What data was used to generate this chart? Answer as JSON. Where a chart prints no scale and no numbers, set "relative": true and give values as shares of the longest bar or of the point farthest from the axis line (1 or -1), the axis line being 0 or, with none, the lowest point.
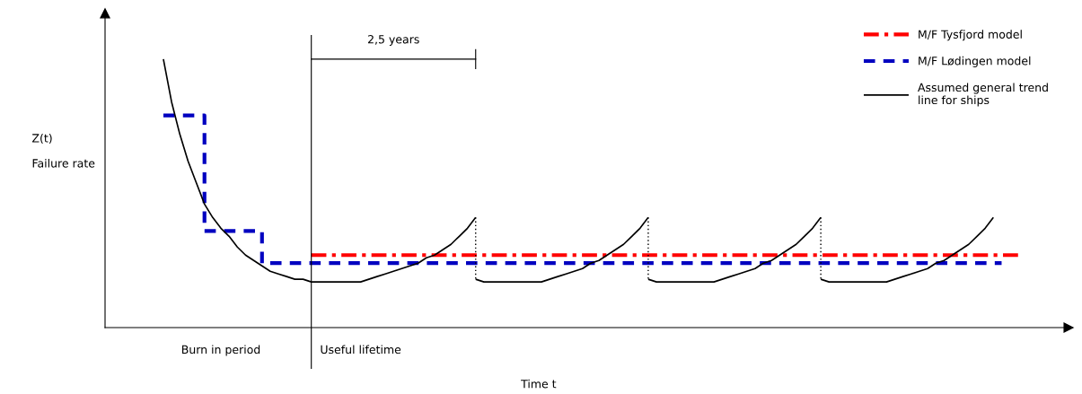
{
  "chart_data": {
    "type": "line",
    "relative": true,
    "xlabel": "Time t",
    "categories": [
      null,
      null,
      null,
      null,
      null,
      null,
      null,
      "Burn in period",
      null,
      null,
      null,
      null,
      null,
      null,
      null,
      null,
      null,
      null,
      null,
      null,
      null,
      null,
      null,
      null,
      "Useful lifetime",
      null,
      null,
      null,
      null,
      null,
      null,
      null,
      null,
      null,
      null,
      null,
      null,
      null,
      null,
      null,
      null,
      null,
      null,
      null,
      null,
      null,
      null,
      null,
      null,
      null,
      null,
      null,
      null,
      null,
      null,
      null,
      null,
      null,
      null,
      null,
      null,
      null,
      null,
      null,
      null,
      null,
      null,
      null,
      null,
      null,
      null,
      null,
      null,
      null,
      null,
      null,
      null,
      null,
      null,
      null,
      null,
      null,
      null,
      null,
      null,
      null,
      null,
      null,
      null,
      null,
      null,
      null,
      null,
      null,
      null,
      null,
      null,
      null,
      null,
      null,
      null,
      null,
      null,
      null,
      null
    ],
    "annotations": [
      "Z(t)",
      "Failure rate",
      "2,5 years"
    ],
    "legend": "top right",
    "marker": "none",
    "series": [
      {
        "name": "M/F Tysfjord model",
        "color": "#ff0000",
        "line_style": "dashdot",
        "values": [
          null,
          null,
          null,
          null,
          null,
          null,
          null,
          null,
          null,
          null,
          null,
          null,
          null,
          null,
          null,
          null,
          null,
          null,
          0.27,
          0.27,
          0.27,
          0.27,
          0.27,
          0.27,
          0.27,
          0.27,
          0.27,
          0.27,
          0.27,
          0.27,
          0.27,
          0.27,
          0.27,
          0.27,
          0.27,
          0.27,
          0.27,
          0.27,
          0.27,
          0.27,
          0.27,
          0.27,
          0.27,
          0.27,
          0.27,
          0.27,
          0.27,
          0.27,
          0.27,
          0.27,
          0.27,
          0.27,
          0.27,
          0.27,
          0.27,
          0.27,
          0.27,
          0.27,
          0.27,
          0.27,
          0.27,
          0.27,
          0.27,
          0.27,
          0.27,
          0.27,
          0.27,
          0.27,
          0.27,
          0.27,
          0.27,
          0.27,
          0.27,
          0.27,
          0.27,
          0.27,
          0.27,
          0.27,
          0.27,
          0.27,
          0.27,
          0.27,
          0.27,
          0.27,
          0.27,
          0.27,
          0.27,
          0.27,
          0.27,
          0.27,
          0.27,
          0.27,
          0.27,
          0.27,
          0.27,
          0.27,
          0.27,
          0.27,
          0.27,
          0.27,
          0.27,
          0.27,
          0.27,
          0.27,
          0.27
        ]
      },
      {
        "name": "M/F Lødingen model",
        "type": "step",
        "color": "#0000c0",
        "line_style": "dashed",
        "values": [
          0.79,
          0.79,
          0.79,
          0.79,
          0.79,
          0.36,
          0.36,
          0.36,
          0.36,
          0.36,
          0.36,
          0.36,
          0.24,
          0.24,
          0.24,
          0.24,
          0.24,
          0.24,
          0.24,
          0.24,
          0.24,
          0.24,
          0.24,
          0.24,
          0.24,
          0.24,
          0.24,
          0.24,
          0.24,
          0.24,
          0.24,
          0.24,
          0.24,
          0.24,
          0.24,
          0.24,
          0.24,
          0.24,
          0.24,
          0.24,
          0.24,
          0.24,
          0.24,
          0.24,
          0.24,
          0.24,
          0.24,
          0.24,
          0.24,
          0.24,
          0.24,
          0.24,
          0.24,
          0.24,
          0.24,
          0.24,
          0.24,
          0.24,
          0.24,
          0.24,
          0.24,
          0.24,
          0.24,
          0.24,
          0.24,
          0.24,
          0.24,
          0.24,
          0.24,
          0.24,
          0.24,
          0.24,
          0.24,
          0.24,
          0.24,
          0.24,
          0.24,
          0.24,
          0.24,
          0.24,
          0.24,
          0.24,
          0.24,
          0.24,
          0.24,
          0.24,
          0.24,
          0.24,
          0.24,
          0.24,
          0.24,
          0.24,
          0.24,
          0.24,
          0.24,
          0.24,
          0.24,
          0.24,
          0.24,
          0.24,
          0.24,
          0.24,
          0.24,
          null,
          null
        ]
      },
      {
        "name": "Assumed general trend\nline for ships",
        "color": "#000000",
        "line_style": "solid",
        "values": [
          1.0,
          0.84,
          0.72,
          0.62,
          0.54,
          0.46,
          0.41,
          0.37,
          0.34,
          0.3,
          0.27,
          0.25,
          0.23,
          0.21,
          0.2,
          0.19,
          0.18,
          0.18,
          0.17,
          0.17,
          0.17,
          0.17,
          0.17,
          0.17,
          0.17,
          0.18,
          0.19,
          0.2,
          0.21,
          0.22,
          0.23,
          0.24,
          0.26,
          0.27,
          0.29,
          0.31,
          0.34,
          0.37,
          0.41,
          null,
          null,
          null,
          null,
          null,
          null,
          null,
          null,
          null,
          null,
          null,
          null,
          null,
          null,
          null,
          null,
          null,
          null,
          null,
          null,
          null,
          null,
          null,
          null,
          null,
          null,
          null,
          null,
          null,
          null,
          null,
          null,
          null,
          null,
          null,
          null,
          null,
          null,
          null,
          null,
          null,
          null,
          null,
          null,
          null,
          null,
          null,
          null,
          null,
          null,
          null,
          null,
          null,
          null,
          null,
          null,
          null,
          null,
          null,
          null,
          null,
          null,
          null,
          null,
          null,
          null
        ]
      },
      {
        "color": "#000000",
        "line_style": "solid",
        "values": [
          null,
          null,
          null,
          null,
          null,
          null,
          null,
          null,
          null,
          null,
          null,
          null,
          null,
          null,
          null,
          null,
          null,
          null,
          null,
          null,
          null,
          null,
          null,
          null,
          null,
          null,
          null,
          null,
          null,
          null,
          null,
          null,
          null,
          null,
          null,
          null,
          null,
          null,
          0.18,
          0.17,
          0.17,
          0.17,
          0.17,
          0.17,
          0.17,
          0.17,
          0.17,
          0.18,
          0.19,
          0.2,
          0.21,
          0.22,
          0.24,
          0.25,
          0.27,
          0.29,
          0.31,
          0.34,
          0.37,
          0.41,
          null,
          null,
          null,
          null,
          null,
          null,
          null,
          null,
          null,
          null,
          null,
          null,
          null,
          null,
          null,
          null,
          null,
          null,
          null,
          null,
          null,
          null,
          null,
          null,
          null,
          null,
          null,
          null,
          null,
          null,
          null,
          null,
          null,
          null,
          null,
          null,
          null,
          null,
          null,
          null,
          null,
          null,
          null,
          null,
          null
        ]
      },
      {
        "color": "#000000",
        "line_style": "solid",
        "values": [
          null,
          null,
          null,
          null,
          null,
          null,
          null,
          null,
          null,
          null,
          null,
          null,
          null,
          null,
          null,
          null,
          null,
          null,
          null,
          null,
          null,
          null,
          null,
          null,
          null,
          null,
          null,
          null,
          null,
          null,
          null,
          null,
          null,
          null,
          null,
          null,
          null,
          null,
          null,
          null,
          null,
          null,
          null,
          null,
          null,
          null,
          null,
          null,
          null,
          null,
          null,
          null,
          null,
          null,
          null,
          null,
          null,
          null,
          null,
          0.18,
          0.17,
          0.17,
          0.17,
          0.17,
          0.17,
          0.17,
          0.17,
          0.17,
          0.18,
          0.19,
          0.2,
          0.21,
          0.22,
          0.24,
          0.25,
          0.27,
          0.29,
          0.31,
          0.34,
          0.37,
          0.41,
          null,
          null,
          null,
          null,
          null,
          null,
          null,
          null,
          null,
          null,
          null,
          null,
          null,
          null,
          null,
          null,
          null,
          null,
          null,
          null,
          null,
          null,
          null,
          null
        ]
      },
      {
        "color": "#000000",
        "line_style": "solid",
        "values": [
          null,
          null,
          null,
          null,
          null,
          null,
          null,
          null,
          null,
          null,
          null,
          null,
          null,
          null,
          null,
          null,
          null,
          null,
          null,
          null,
          null,
          null,
          null,
          null,
          null,
          null,
          null,
          null,
          null,
          null,
          null,
          null,
          null,
          null,
          null,
          null,
          null,
          null,
          null,
          null,
          null,
          null,
          null,
          null,
          null,
          null,
          null,
          null,
          null,
          null,
          null,
          null,
          null,
          null,
          null,
          null,
          null,
          null,
          null,
          null,
          null,
          null,
          null,
          null,
          null,
          null,
          null,
          null,
          null,
          null,
          null,
          null,
          null,
          null,
          null,
          null,
          null,
          null,
          null,
          null,
          0.18,
          0.17,
          0.17,
          0.17,
          0.17,
          0.17,
          0.17,
          0.17,
          0.17,
          0.18,
          0.19,
          0.2,
          0.21,
          0.22,
          0.24,
          0.25,
          0.27,
          0.29,
          0.31,
          0.34,
          0.37,
          0.41,
          null,
          null,
          null
        ]
      }
    ]
  }
}
